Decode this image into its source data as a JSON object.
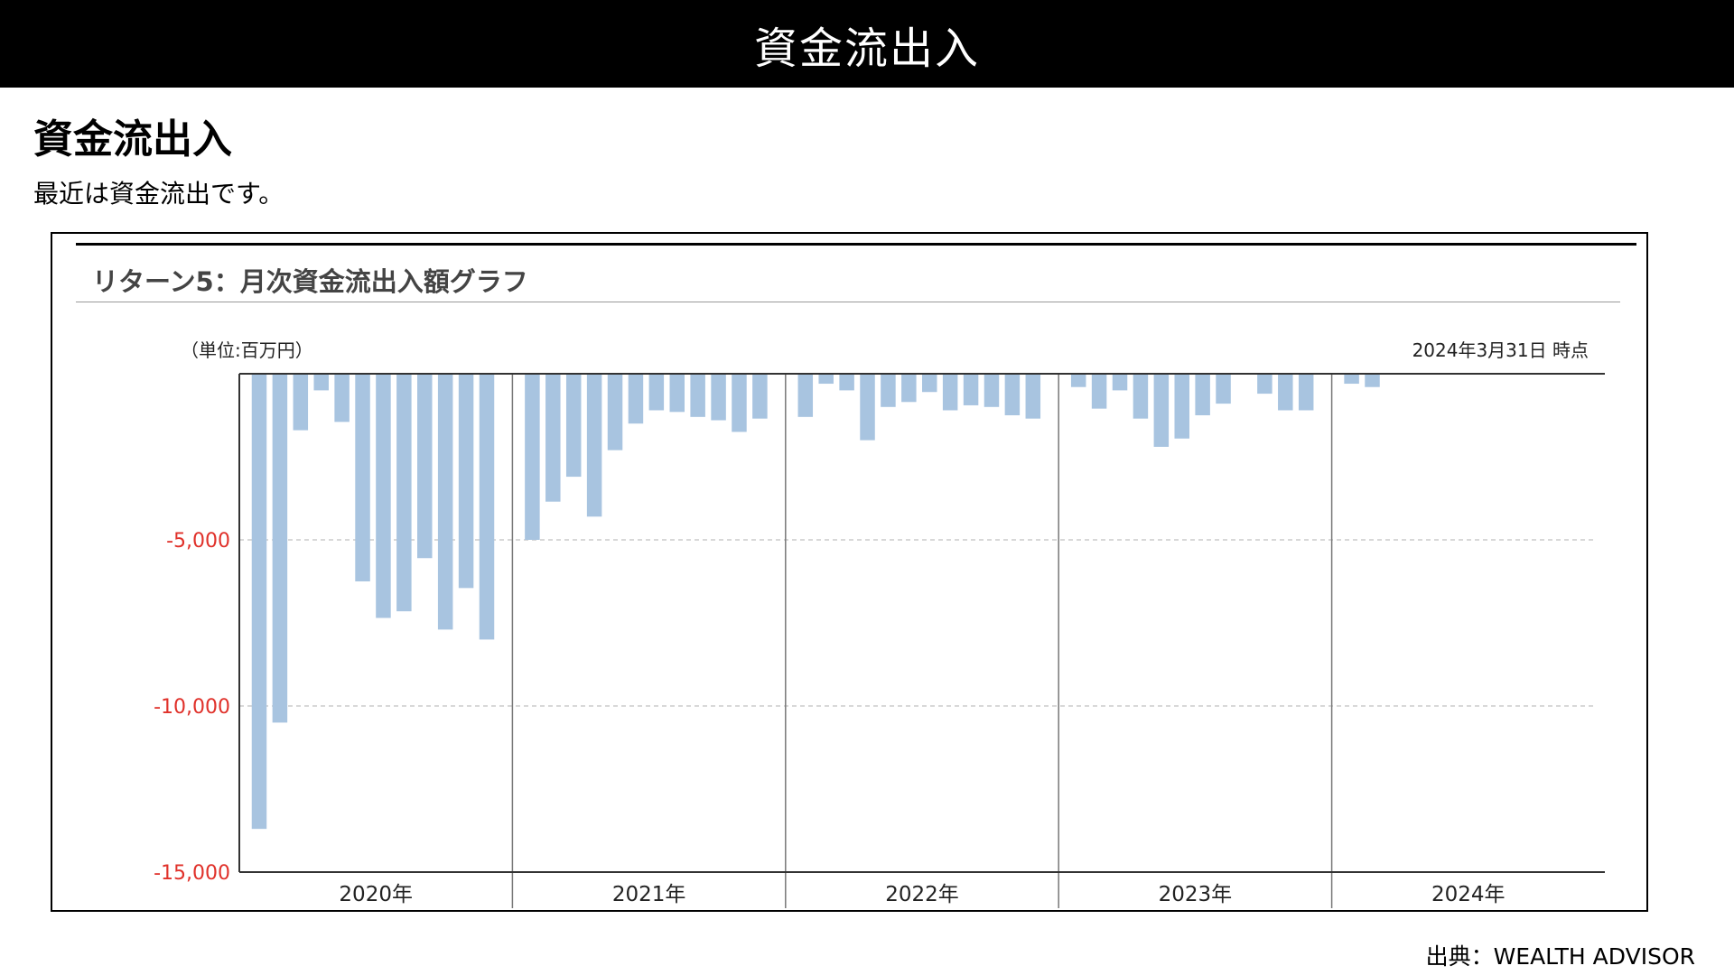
{
  "header": {
    "title": "資金流出入"
  },
  "section": {
    "heading": "資金流出入",
    "description": "最近は資金流出です。"
  },
  "chart_card": {
    "title": "リターン5：月次資金流出入額グラフ",
    "unit_label": "（単位:百万円）",
    "as_of": "2024年3月31日 時点"
  },
  "source": "出典：WEALTH ADVISOR",
  "colors": {
    "bar": "#a8c4e0",
    "negative_tick": "#e0312a",
    "axis": "#333333",
    "grid": "#cccccc"
  },
  "chart_data": {
    "type": "bar",
    "title": "リターン5：月次資金流出入額グラフ",
    "xlabel": "",
    "ylabel": "（単位:百万円）",
    "ylim": [
      -15000,
      0
    ],
    "yticks": [
      {
        "value": -5000,
        "label": "-5,000"
      },
      {
        "value": -10000,
        "label": "-10,000"
      },
      {
        "value": -15000,
        "label": "-15,000"
      }
    ],
    "grid": true,
    "legend": "none",
    "year_groups": [
      {
        "label": "2020年",
        "values": [
          -13700,
          -10500,
          -1700,
          -500,
          -1450,
          -6250,
          -7350,
          -7150,
          -5550,
          -7700,
          -6450,
          -8000
        ]
      },
      {
        "label": "2021年",
        "values": [
          -5000,
          -3850,
          -3100,
          -4300,
          -2300,
          -1500,
          -1100,
          -1150,
          -1300,
          -1400,
          -1750,
          -1350
        ]
      },
      {
        "label": "2022年",
        "values": [
          -1300,
          -300,
          -500,
          -2000,
          -1000,
          -850,
          -550,
          -1100,
          -950,
          -1000,
          -1250,
          -1350
        ]
      },
      {
        "label": "2023年",
        "values": [
          -400,
          -1050,
          -500,
          -1350,
          -2200,
          -1950,
          -1250,
          -900,
          0,
          -600,
          -1100,
          -1100
        ]
      },
      {
        "label": "2024年",
        "values": [
          -300,
          -400,
          0
        ]
      }
    ]
  }
}
